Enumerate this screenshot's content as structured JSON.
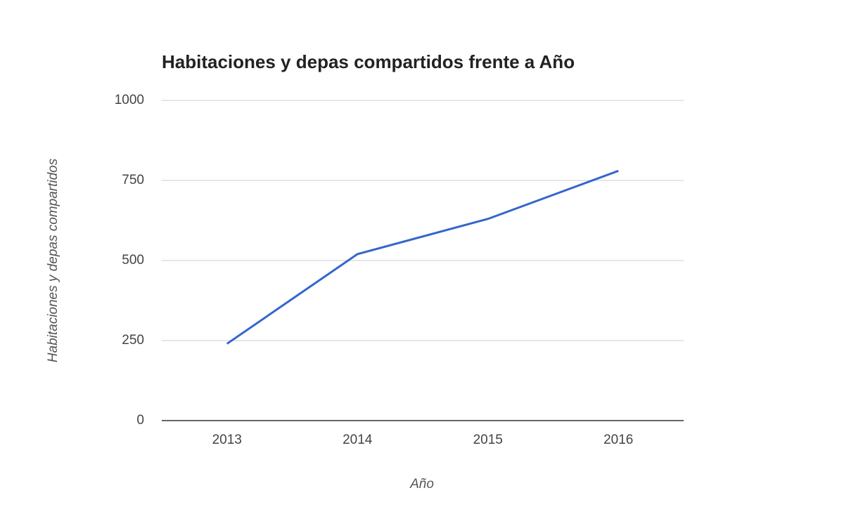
{
  "chart_data": {
    "type": "line",
    "title": "Habitaciones y depas compartidos frente a Año",
    "x_label": "Año",
    "y_label": "Habitaciones y depas compartidos",
    "categories": [
      "2013",
      "2014",
      "2015",
      "2016"
    ],
    "series": [
      {
        "name": "Habitaciones y depas compartidos",
        "color": "#3366cc",
        "values": [
          240,
          520,
          630,
          780
        ]
      }
    ],
    "ylim": [
      0,
      1000
    ],
    "yticks": [
      0,
      250,
      500,
      750,
      1000
    ],
    "grid": true
  }
}
